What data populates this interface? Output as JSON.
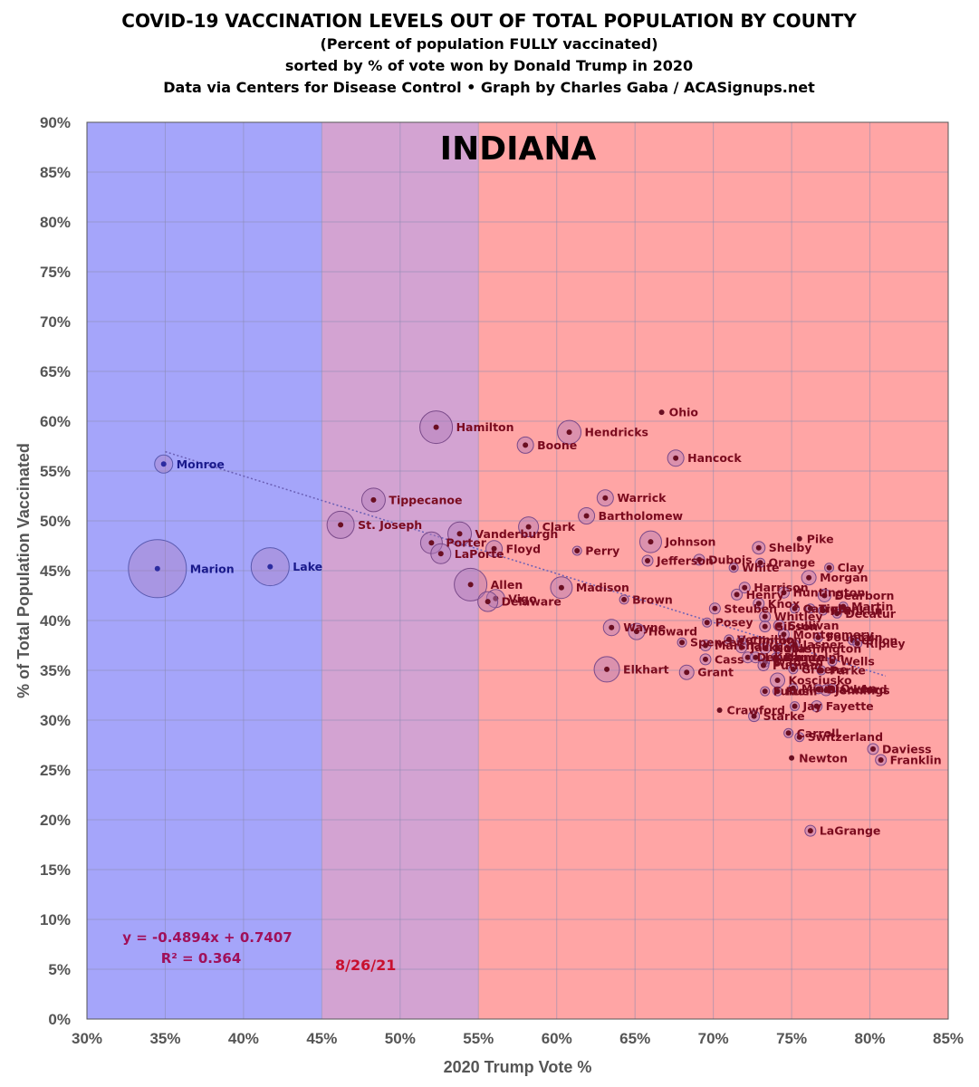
{
  "chart_data": {
    "type": "scatter",
    "title": "COVID-19 VACCINATION LEVELS OUT OF TOTAL POPULATION BY COUNTY",
    "subtitle_lines": [
      "(Percent of population FULLY vaccinated)",
      "sorted by % of vote won by Donald Trump in 2020",
      "Data via Centers for Disease Control • Graph by Charles Gaba / ACASignups.net"
    ],
    "state_label": "INDIANA",
    "xlabel": "2020 Trump Vote %",
    "ylabel": "% of Total Population Vaccinated",
    "xlim": [
      0.3,
      0.85
    ],
    "ylim": [
      0.0,
      0.9
    ],
    "x_ticks": [
      "30%",
      "35%",
      "40%",
      "45%",
      "50%",
      "55%",
      "60%",
      "65%",
      "70%",
      "75%",
      "80%",
      "85%"
    ],
    "y_ticks": [
      "0%",
      "5%",
      "10%",
      "15%",
      "20%",
      "25%",
      "30%",
      "35%",
      "40%",
      "45%",
      "50%",
      "55%",
      "60%",
      "65%",
      "70%",
      "75%",
      "80%",
      "85%",
      "90%"
    ],
    "grid": true,
    "background_bands": [
      {
        "x_from": 0.3,
        "x_to": 0.45,
        "color": "#a5a5fa"
      },
      {
        "x_from": 0.45,
        "x_to": 0.55,
        "color": "#d3a3d2"
      },
      {
        "x_from": 0.55,
        "x_to": 0.85,
        "color": "#ffa5a5"
      }
    ],
    "trendline": {
      "slope": -0.4894,
      "intercept": 0.7407,
      "x_from": 0.35,
      "x_to": 0.81,
      "color": "#6a5fb5"
    },
    "equation": "y = -0.4894x + 0.7407",
    "r_squared": "R² = 0.364",
    "date": "8/26/21",
    "colors": {
      "blue_point": "#2c2ca0",
      "blue_label": "#1a1a8c",
      "red_point": "#6a0f22",
      "red_label": "#7a0a1e",
      "bubble_fill": "#b07ab8",
      "bubble_stroke": "#7a4a8a"
    },
    "points": [
      {
        "name": "Marion",
        "x": 0.345,
        "y": 0.452,
        "size": 32
      },
      {
        "name": "Lake",
        "x": 0.417,
        "y": 0.454,
        "size": 21
      },
      {
        "name": "Monroe",
        "x": 0.349,
        "y": 0.557,
        "size": 10
      },
      {
        "name": "Hamilton",
        "x": 0.523,
        "y": 0.594,
        "size": 18
      },
      {
        "name": "Tippecanoe",
        "x": 0.483,
        "y": 0.521,
        "size": 13
      },
      {
        "name": "St. Joseph",
        "x": 0.462,
        "y": 0.496,
        "size": 15
      },
      {
        "name": "Vanderburgh",
        "x": 0.538,
        "y": 0.487,
        "size": 13
      },
      {
        "name": "Porter",
        "x": 0.52,
        "y": 0.478,
        "size": 12
      },
      {
        "name": "LaPorte",
        "x": 0.526,
        "y": 0.467,
        "size": 11
      },
      {
        "name": "Allen",
        "x": 0.545,
        "y": 0.436,
        "size": 18
      },
      {
        "name": "Vigo",
        "x": 0.561,
        "y": 0.422,
        "size": 10
      },
      {
        "name": "Delaware",
        "x": 0.556,
        "y": 0.419,
        "size": 11
      },
      {
        "name": "Boone",
        "x": 0.58,
        "y": 0.576,
        "size": 9
      },
      {
        "name": "Hendricks",
        "x": 0.608,
        "y": 0.589,
        "size": 13
      },
      {
        "name": "Clark",
        "x": 0.582,
        "y": 0.494,
        "size": 11
      },
      {
        "name": "Floyd",
        "x": 0.56,
        "y": 0.472,
        "size": 9
      },
      {
        "name": "Madison",
        "x": 0.603,
        "y": 0.433,
        "size": 12
      },
      {
        "name": "Ohio",
        "x": 0.667,
        "y": 0.609,
        "size": 4
      },
      {
        "name": "Hancock",
        "x": 0.676,
        "y": 0.563,
        "size": 9
      },
      {
        "name": "Warrick",
        "x": 0.631,
        "y": 0.523,
        "size": 9
      },
      {
        "name": "Bartholomew",
        "x": 0.619,
        "y": 0.505,
        "size": 9
      },
      {
        "name": "Perry",
        "x": 0.613,
        "y": 0.47,
        "size": 5
      },
      {
        "name": "Johnson",
        "x": 0.66,
        "y": 0.479,
        "size": 12
      },
      {
        "name": "Jefferson",
        "x": 0.658,
        "y": 0.46,
        "size": 6
      },
      {
        "name": "Dubois",
        "x": 0.691,
        "y": 0.461,
        "size": 6
      },
      {
        "name": "Brown",
        "x": 0.643,
        "y": 0.421,
        "size": 5
      },
      {
        "name": "Wayne",
        "x": 0.635,
        "y": 0.393,
        "size": 9
      },
      {
        "name": "Howard",
        "x": 0.651,
        "y": 0.389,
        "size": 9
      },
      {
        "name": "Elkhart",
        "x": 0.632,
        "y": 0.351,
        "size": 14
      },
      {
        "name": "Grant",
        "x": 0.683,
        "y": 0.348,
        "size": 8
      },
      {
        "name": "Cass",
        "x": 0.695,
        "y": 0.361,
        "size": 6
      },
      {
        "name": "Posey",
        "x": 0.696,
        "y": 0.398,
        "size": 5
      },
      {
        "name": "Steuben",
        "x": 0.701,
        "y": 0.412,
        "size": 6
      },
      {
        "name": "Shelby",
        "x": 0.729,
        "y": 0.473,
        "size": 7
      },
      {
        "name": "Orange",
        "x": 0.73,
        "y": 0.458,
        "size": 5
      },
      {
        "name": "White",
        "x": 0.713,
        "y": 0.453,
        "size": 5
      },
      {
        "name": "Harrison",
        "x": 0.72,
        "y": 0.433,
        "size": 6
      },
      {
        "name": "Henry",
        "x": 0.715,
        "y": 0.426,
        "size": 6
      },
      {
        "name": "Knox",
        "x": 0.729,
        "y": 0.417,
        "size": 6
      },
      {
        "name": "Huntington",
        "x": 0.745,
        "y": 0.428,
        "size": 6
      },
      {
        "name": "Whitley",
        "x": 0.733,
        "y": 0.404,
        "size": 6
      },
      {
        "name": "Sullivan",
        "x": 0.742,
        "y": 0.395,
        "size": 6
      },
      {
        "name": "Gibson",
        "x": 0.733,
        "y": 0.394,
        "size": 6
      },
      {
        "name": "Montgomery",
        "x": 0.745,
        "y": 0.386,
        "size": 6
      },
      {
        "name": "Vermillion",
        "x": 0.71,
        "y": 0.381,
        "size": 5
      },
      {
        "name": "Clinton",
        "x": 0.718,
        "y": 0.38,
        "size": 5
      },
      {
        "name": "Spencer",
        "x": 0.68,
        "y": 0.378,
        "size": 5
      },
      {
        "name": "Marshall",
        "x": 0.695,
        "y": 0.375,
        "size": 6
      },
      {
        "name": "Jackson",
        "x": 0.718,
        "y": 0.373,
        "size": 6
      },
      {
        "name": "Noble",
        "x": 0.733,
        "y": 0.372,
        "size": 6
      },
      {
        "name": "Washington",
        "x": 0.741,
        "y": 0.372,
        "size": 5
      },
      {
        "name": "DeKalb",
        "x": 0.722,
        "y": 0.363,
        "size": 6
      },
      {
        "name": "Lawrence",
        "x": 0.727,
        "y": 0.363,
        "size": 6
      },
      {
        "name": "Randolph",
        "x": 0.74,
        "y": 0.363,
        "size": 5
      },
      {
        "name": "Wabash",
        "x": 0.733,
        "y": 0.358,
        "size": 5
      },
      {
        "name": "Putnam",
        "x": 0.732,
        "y": 0.355,
        "size": 6
      },
      {
        "name": "Greene",
        "x": 0.751,
        "y": 0.351,
        "size": 5
      },
      {
        "name": "Parke",
        "x": 0.769,
        "y": 0.35,
        "size": 5
      },
      {
        "name": "Wells",
        "x": 0.776,
        "y": 0.359,
        "size": 5
      },
      {
        "name": "Kosciusko",
        "x": 0.741,
        "y": 0.34,
        "size": 8
      },
      {
        "name": "Fulton",
        "x": 0.733,
        "y": 0.329,
        "size": 5
      },
      {
        "name": "Rush",
        "x": 0.741,
        "y": 0.329,
        "size": 5
      },
      {
        "name": "Miami",
        "x": 0.751,
        "y": 0.332,
        "size": 5
      },
      {
        "name": "Jennings",
        "x": 0.772,
        "y": 0.33,
        "size": 6
      },
      {
        "name": "Blackford",
        "x": 0.767,
        "y": 0.331,
        "size": 5
      },
      {
        "name": "Owen",
        "x": 0.776,
        "y": 0.332,
        "size": 5
      },
      {
        "name": "Pike",
        "x": 0.755,
        "y": 0.482,
        "size": 4
      },
      {
        "name": "Clay",
        "x": 0.774,
        "y": 0.453,
        "size": 5
      },
      {
        "name": "Morgan",
        "x": 0.761,
        "y": 0.443,
        "size": 8
      },
      {
        "name": "Dearborn",
        "x": 0.771,
        "y": 0.425,
        "size": 7
      },
      {
        "name": "Martin",
        "x": 0.783,
        "y": 0.414,
        "size": 5
      },
      {
        "name": "Decatur",
        "x": 0.779,
        "y": 0.407,
        "size": 5
      },
      {
        "name": "Tipton",
        "x": 0.762,
        "y": 0.412,
        "size": 5
      },
      {
        "name": "Carroll",
        "x": 0.752,
        "y": 0.412,
        "size": 5
      },
      {
        "name": "Franklin",
        "x": 0.77,
        "y": 0.41,
        "size": 5
      },
      {
        "name": "Fountain",
        "x": 0.767,
        "y": 0.383,
        "size": 5
      },
      {
        "name": "Union",
        "x": 0.789,
        "y": 0.38,
        "size": 5
      },
      {
        "name": "Ripley",
        "x": 0.792,
        "y": 0.377,
        "size": 5
      },
      {
        "name": "Jasper",
        "x": 0.752,
        "y": 0.376,
        "size": 5
      },
      {
        "name": "Starke",
        "x": 0.726,
        "y": 0.304,
        "size": 6
      },
      {
        "name": "Crawford",
        "x": 0.704,
        "y": 0.31,
        "size": 4
      },
      {
        "name": "Jay",
        "x": 0.752,
        "y": 0.314,
        "size": 5
      },
      {
        "name": "Fayette",
        "x": 0.766,
        "y": 0.314,
        "size": 6
      },
      {
        "name": "Carroll",
        "x": 0.748,
        "y": 0.287,
        "size": 5
      },
      {
        "name": "Switzerland",
        "x": 0.755,
        "y": 0.283,
        "size": 5
      },
      {
        "name": "Daviess",
        "x": 0.802,
        "y": 0.271,
        "size": 6
      },
      {
        "name": "Newton",
        "x": 0.75,
        "y": 0.262,
        "size": 4
      },
      {
        "name": "Franklin",
        "x": 0.807,
        "y": 0.26,
        "size": 6
      },
      {
        "name": "LaGrange",
        "x": 0.762,
        "y": 0.189,
        "size": 6
      }
    ]
  }
}
